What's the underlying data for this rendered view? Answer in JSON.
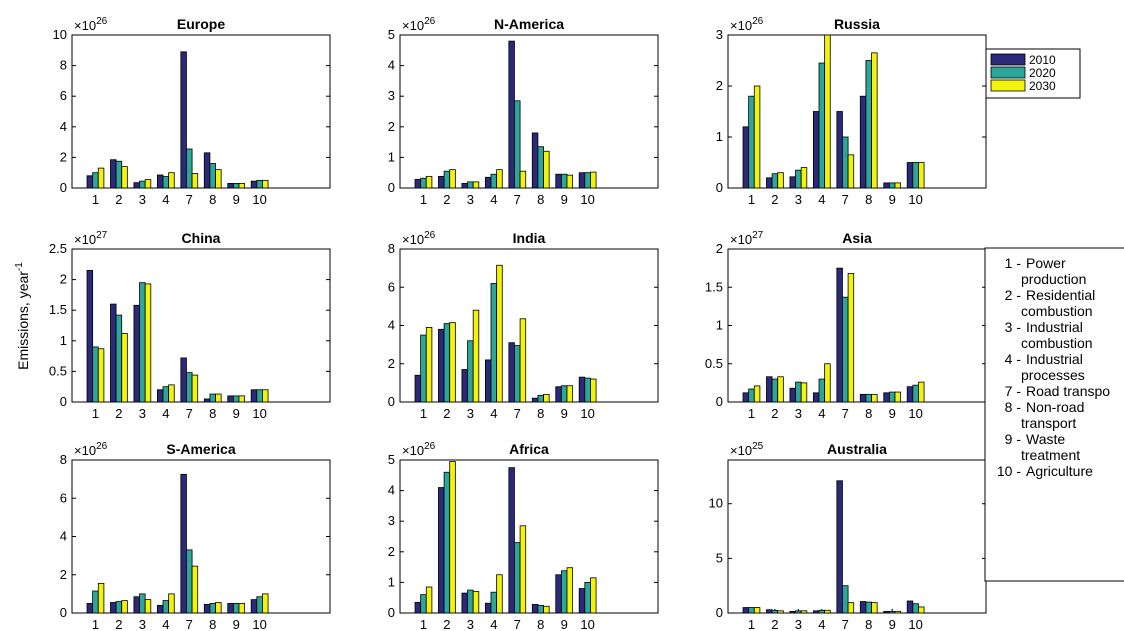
{
  "figure": {
    "ylabel": "Emissions, year",
    "ylabel_sup": "-1"
  },
  "legend": {
    "entries": [
      {
        "label": "2010",
        "color": "#2a2a78"
      },
      {
        "label": "2020",
        "color": "#2ca69a"
      },
      {
        "label": "2030",
        "color": "#f2f20e"
      }
    ]
  },
  "category_key": [
    {
      "code": "1",
      "text": [
        "Power",
        "production"
      ]
    },
    {
      "code": "2",
      "text": [
        "Residential",
        "combustion"
      ]
    },
    {
      "code": "3",
      "text": [
        "Industrial",
        "combustion"
      ]
    },
    {
      "code": "4",
      "text": [
        "Industrial",
        "processes"
      ]
    },
    {
      "code": "7",
      "text": [
        "Road transpo"
      ]
    },
    {
      "code": "8",
      "text": [
        "Non-road",
        "transport"
      ]
    },
    {
      "code": "9",
      "text": [
        "Waste",
        "treatment"
      ]
    },
    {
      "code": "10",
      "text": [
        "Agriculture"
      ]
    }
  ],
  "chart_data": [
    {
      "type": "bar",
      "title": "Europe",
      "exponent": "26",
      "categories": [
        "1",
        "2",
        "3",
        "4",
        "7",
        "8",
        "9",
        "10"
      ],
      "ylim": [
        0,
        10
      ],
      "yticks": [
        "0",
        "2",
        "4",
        "6",
        "8",
        "10"
      ],
      "series": [
        {
          "name": "2010",
          "values": [
            0.8,
            1.85,
            0.35,
            0.85,
            8.9,
            2.3,
            0.3,
            0.45
          ]
        },
        {
          "name": "2020",
          "values": [
            1.0,
            1.75,
            0.45,
            0.75,
            2.55,
            1.6,
            0.3,
            0.5
          ]
        },
        {
          "name": "2030",
          "values": [
            1.3,
            1.4,
            0.55,
            1.0,
            0.95,
            1.2,
            0.3,
            0.5
          ]
        }
      ]
    },
    {
      "type": "bar",
      "title": "N-America",
      "exponent": "26",
      "categories": [
        "1",
        "2",
        "3",
        "4",
        "7",
        "8",
        "9",
        "10"
      ],
      "ylim": [
        0,
        5
      ],
      "yticks": [
        "0",
        "1",
        "2",
        "3",
        "4",
        "5"
      ],
      "series": [
        {
          "name": "2010",
          "values": [
            0.28,
            0.38,
            0.15,
            0.35,
            4.8,
            1.8,
            0.45,
            0.5
          ]
        },
        {
          "name": "2020",
          "values": [
            0.32,
            0.55,
            0.2,
            0.45,
            2.85,
            1.35,
            0.45,
            0.5
          ]
        },
        {
          "name": "2030",
          "values": [
            0.38,
            0.6,
            0.2,
            0.6,
            0.55,
            1.2,
            0.42,
            0.52
          ]
        }
      ]
    },
    {
      "type": "bar",
      "title": "Russia",
      "exponent": "26",
      "categories": [
        "1",
        "2",
        "3",
        "4",
        "7",
        "8",
        "9",
        "10"
      ],
      "ylim": [
        0,
        3
      ],
      "yticks": [
        "0",
        "1",
        "2",
        "3"
      ],
      "series": [
        {
          "name": "2010",
          "values": [
            1.2,
            0.2,
            0.22,
            1.5,
            1.5,
            1.8,
            0.1,
            0.5
          ]
        },
        {
          "name": "2020",
          "values": [
            1.8,
            0.28,
            0.35,
            2.45,
            1.0,
            2.5,
            0.1,
            0.5
          ]
        },
        {
          "name": "2030",
          "values": [
            2.0,
            0.3,
            0.4,
            3.0,
            0.65,
            2.65,
            0.1,
            0.5
          ]
        }
      ]
    },
    {
      "type": "bar",
      "title": "China",
      "exponent": "27",
      "categories": [
        "1",
        "2",
        "3",
        "4",
        "7",
        "8",
        "9",
        "10"
      ],
      "ylim": [
        0,
        2.5
      ],
      "yticks": [
        "0",
        "0.5",
        "1",
        "1.5",
        "2",
        "2.5"
      ],
      "series": [
        {
          "name": "2010",
          "values": [
            2.15,
            1.6,
            1.58,
            0.2,
            0.72,
            0.05,
            0.1,
            0.2
          ]
        },
        {
          "name": "2020",
          "values": [
            0.9,
            1.42,
            1.95,
            0.25,
            0.48,
            0.13,
            0.1,
            0.2
          ]
        },
        {
          "name": "2030",
          "values": [
            0.87,
            1.12,
            1.93,
            0.28,
            0.44,
            0.13,
            0.1,
            0.2
          ]
        }
      ]
    },
    {
      "type": "bar",
      "title": "India",
      "exponent": "26",
      "categories": [
        "1",
        "2",
        "3",
        "4",
        "7",
        "8",
        "9",
        "10"
      ],
      "ylim": [
        0,
        8
      ],
      "yticks": [
        "0",
        "2",
        "4",
        "6",
        "8"
      ],
      "series": [
        {
          "name": "2010",
          "values": [
            1.4,
            3.8,
            1.7,
            2.2,
            3.1,
            0.2,
            0.8,
            1.3
          ]
        },
        {
          "name": "2020",
          "values": [
            3.5,
            4.1,
            3.2,
            6.2,
            2.95,
            0.35,
            0.85,
            1.25
          ]
        },
        {
          "name": "2030",
          "values": [
            3.9,
            4.15,
            4.8,
            7.15,
            4.35,
            0.4,
            0.85,
            1.2
          ]
        }
      ]
    },
    {
      "type": "bar",
      "title": "Asia",
      "exponent": "27",
      "categories": [
        "1",
        "2",
        "3",
        "4",
        "7",
        "8",
        "9",
        "10"
      ],
      "ylim": [
        0,
        2
      ],
      "yticks": [
        "0",
        "0.5",
        "1",
        "1.5",
        "2"
      ],
      "series": [
        {
          "name": "2010",
          "values": [
            0.12,
            0.33,
            0.18,
            0.12,
            1.75,
            0.1,
            0.12,
            0.2
          ]
        },
        {
          "name": "2020",
          "values": [
            0.17,
            0.3,
            0.26,
            0.3,
            1.37,
            0.1,
            0.13,
            0.22
          ]
        },
        {
          "name": "2030",
          "values": [
            0.21,
            0.33,
            0.25,
            0.5,
            1.68,
            0.1,
            0.13,
            0.26
          ]
        }
      ]
    },
    {
      "type": "bar",
      "title": "S-America",
      "exponent": "26",
      "categories": [
        "1",
        "2",
        "3",
        "4",
        "7",
        "8",
        "9",
        "10"
      ],
      "ylim": [
        0,
        8
      ],
      "yticks": [
        "0",
        "2",
        "4",
        "6",
        "8"
      ],
      "series": [
        {
          "name": "2010",
          "values": [
            0.5,
            0.55,
            0.85,
            0.4,
            7.25,
            0.45,
            0.5,
            0.7
          ]
        },
        {
          "name": "2020",
          "values": [
            1.15,
            0.6,
            1.0,
            0.65,
            3.3,
            0.5,
            0.5,
            0.85
          ]
        },
        {
          "name": "2030",
          "values": [
            1.55,
            0.65,
            0.7,
            1.0,
            2.45,
            0.55,
            0.5,
            1.0
          ]
        }
      ]
    },
    {
      "type": "bar",
      "title": "Africa",
      "exponent": "26",
      "categories": [
        "1",
        "2",
        "3",
        "4",
        "7",
        "8",
        "9",
        "10"
      ],
      "ylim": [
        0,
        5
      ],
      "yticks": [
        "0",
        "1",
        "2",
        "3",
        "4",
        "5"
      ],
      "series": [
        {
          "name": "2010",
          "values": [
            0.35,
            4.1,
            0.65,
            0.32,
            4.75,
            0.28,
            1.25,
            0.8
          ]
        },
        {
          "name": "2020",
          "values": [
            0.6,
            4.6,
            0.75,
            0.68,
            2.3,
            0.25,
            1.38,
            1.0
          ]
        },
        {
          "name": "2030",
          "values": [
            0.85,
            4.95,
            0.7,
            1.25,
            2.85,
            0.22,
            1.48,
            1.15
          ]
        }
      ]
    },
    {
      "type": "bar",
      "title": "Australia",
      "exponent": "25",
      "categories": [
        "1",
        "2",
        "3",
        "4",
        "7",
        "8",
        "9",
        "10"
      ],
      "ylim": [
        0,
        14
      ],
      "yticks": [
        "0",
        "5",
        "10"
      ],
      "series": [
        {
          "name": "2010",
          "values": [
            0.5,
            0.3,
            0.15,
            0.2,
            12.1,
            1.05,
            0.15,
            1.1
          ]
        },
        {
          "name": "2020",
          "values": [
            0.5,
            0.25,
            0.2,
            0.25,
            2.5,
            1.0,
            0.15,
            0.85
          ]
        },
        {
          "name": "2030",
          "values": [
            0.5,
            0.2,
            0.2,
            0.25,
            0.95,
            0.95,
            0.15,
            0.55
          ]
        }
      ]
    }
  ]
}
